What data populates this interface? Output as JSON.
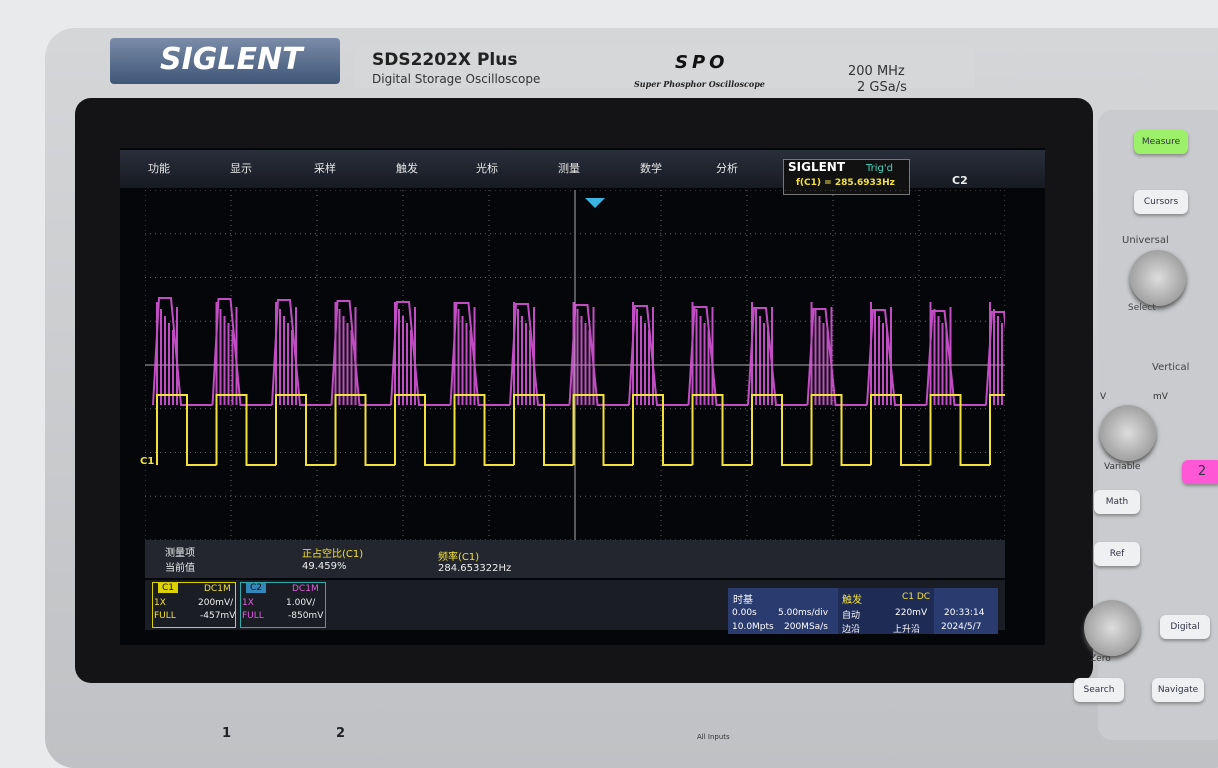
{
  "bezel": {
    "brand": "SIGLENT",
    "model": "SDS2202X Plus",
    "subtitle": "Digital Storage Oscilloscope",
    "spo_logo": "SPO",
    "spo_text": "Super Phosphor Oscilloscope",
    "bandwidth": "200 MHz",
    "sample_rate": "2 GSa/s"
  },
  "menu": {
    "items": [
      "功能",
      "显示",
      "采样",
      "触发",
      "光标",
      "测量",
      "数学",
      "分析"
    ],
    "badge": "SIGLENT",
    "trigger_status": "Trig'd",
    "frequency": "f(C1) = 285.6933Hz",
    "channel": "C2"
  },
  "measure_bar": {
    "item_label": "测量项",
    "current_label": "当前值",
    "measures": [
      {
        "name": "正占空比(C1)",
        "value": "49.459%"
      },
      {
        "name": "频率(C1)",
        "value": "284.653322Hz"
      }
    ]
  },
  "channels": [
    {
      "name": "C1",
      "coupling": "DC1M",
      "probe": "1X",
      "scale": "200mV/",
      "bandwidth": "FULL",
      "offset": "-457mV"
    },
    {
      "name": "C2",
      "coupling": "DC1M",
      "probe": "1X",
      "scale": "1.00V/",
      "bandwidth": "FULL",
      "offset": "-850mV"
    }
  ],
  "timebase": {
    "title": "时基",
    "delay": "0.00s",
    "scale": "5.00ms/div",
    "memory": "10.0Mpts",
    "sample_rate": "200MSa/s"
  },
  "trigger": {
    "title": "触发",
    "source": "C1 DC",
    "mode": "自动",
    "level": "220mV",
    "type": "边沿",
    "slope": "上升沿"
  },
  "clock": {
    "time": "20:33:14",
    "date": "2024/5/7"
  },
  "markers": {
    "c1": "C1"
  },
  "buttons": {
    "measure": "Measure",
    "cursors": "Cursors",
    "universal": "Universal",
    "select": "Select",
    "vertical": "Vertical",
    "v": "V",
    "mv": "mV",
    "variable": "Variable",
    "math": "Math",
    "ref": "Ref",
    "ch2": "2",
    "digital": "Digital",
    "zero": "Zero",
    "search": "Search",
    "navigate": "Navigate"
  },
  "inputs": {
    "in1": "1",
    "in2": "2",
    "all": "All Inputs"
  }
}
